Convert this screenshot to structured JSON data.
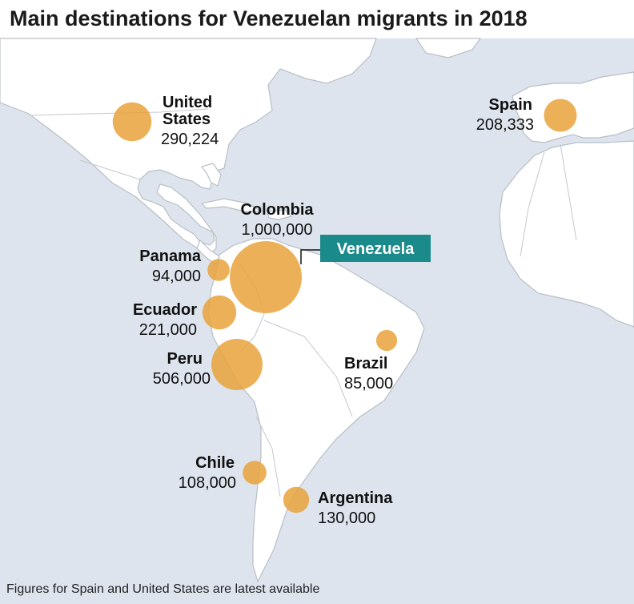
{
  "title": "Main destinations for Venezuelan migrants in 2018",
  "footnote": "Figures for Spain and United States are latest available",
  "origin": {
    "label": "Venezuela"
  },
  "colors": {
    "ocean": "#dde4ee",
    "land": "#ffffff",
    "bubble": "#e9a23b",
    "origin_box": "#1a8b8a"
  },
  "destinations": [
    {
      "country_line1": "United",
      "country_line2": "States",
      "migrants": 290224,
      "value_label": "290,224"
    },
    {
      "country_line1": "Spain",
      "country_line2": "",
      "migrants": 208333,
      "value_label": "208,333"
    },
    {
      "country_line1": "Colombia",
      "country_line2": "",
      "migrants": 1000000,
      "value_label": "1,000,000"
    },
    {
      "country_line1": "Panama",
      "country_line2": "",
      "migrants": 94000,
      "value_label": "94,000"
    },
    {
      "country_line1": "Ecuador",
      "country_line2": "",
      "migrants": 221000,
      "value_label": "221,000"
    },
    {
      "country_line1": "Peru",
      "country_line2": "",
      "migrants": 506000,
      "value_label": "506,000"
    },
    {
      "country_line1": "Brazil",
      "country_line2": "",
      "migrants": 85000,
      "value_label": "85,000"
    },
    {
      "country_line1": "Chile",
      "country_line2": "",
      "migrants": 108000,
      "value_label": "108,000"
    },
    {
      "country_line1": "Argentina",
      "country_line2": "",
      "migrants": 130000,
      "value_label": "130,000"
    }
  ]
}
